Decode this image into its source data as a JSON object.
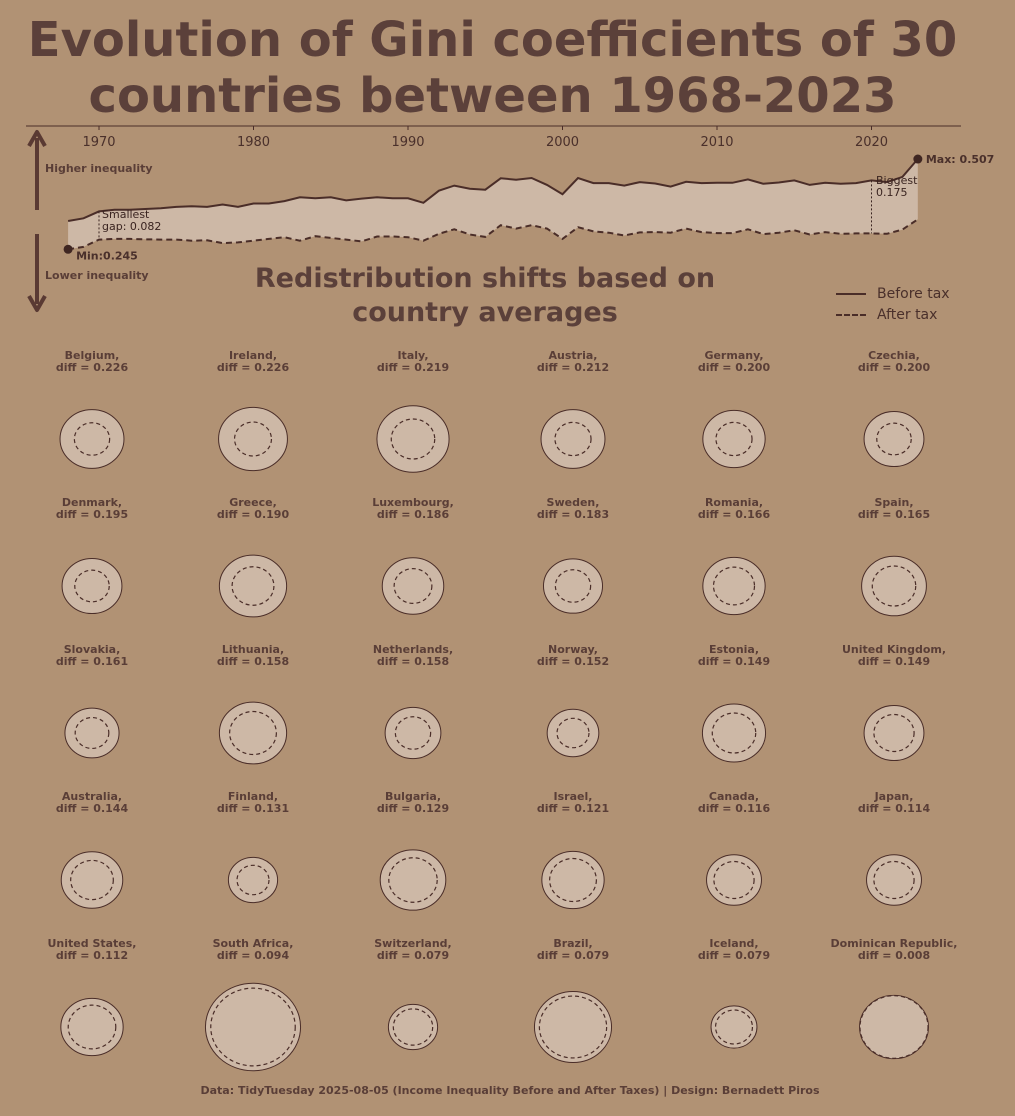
{
  "title": "Evolution of Gini coefficients of 30 countries between 1968-2023",
  "subtitle": "Redistribution shifts based on country averages",
  "caption": "Data: TidyTuesday 2025-08-05 (Income Inequality Before and After Taxes) | Design: Bernadett Piros",
  "legend": {
    "before": "Before tax",
    "after": "After tax"
  },
  "colors": {
    "background": "#b19274",
    "fill": "#cdb8a6",
    "line": "#4a2d28",
    "text": "#5a3e37"
  },
  "chart_data": [
    {
      "type": "area",
      "x_ticks": [
        1970,
        1980,
        1990,
        2000,
        2010,
        2020
      ],
      "xlim": [
        1968,
        2023
      ],
      "ylim": [
        0.24,
        0.51
      ],
      "arrow_labels": {
        "up": "Higher inequality",
        "down": "Lower inequality"
      },
      "annotations": {
        "max": "Max: 0.507",
        "min": "Min:0.245",
        "smallest_gap": "Smallest gap: 0.082",
        "biggest_gap": "Biggest gap: 0.175"
      },
      "series": [
        {
          "name": "Before tax",
          "x": [
            1968,
            1969,
            1970,
            1971,
            1972,
            1973,
            1974,
            1975,
            1976,
            1977,
            1978,
            1979,
            1980,
            1981,
            1982,
            1983,
            1984,
            1985,
            1986,
            1987,
            1988,
            1989,
            1990,
            1991,
            1992,
            1993,
            1994,
            1995,
            1996,
            1997,
            1998,
            1999,
            2000,
            2001,
            2002,
            2003,
            2004,
            2005,
            2006,
            2007,
            2008,
            2009,
            2010,
            2011,
            2012,
            2013,
            2014,
            2015,
            2016,
            2017,
            2018,
            2019,
            2020,
            2021,
            2022,
            2023
          ],
          "values": [
            0.327,
            0.335,
            0.355,
            0.36,
            0.36,
            0.362,
            0.364,
            0.368,
            0.37,
            0.368,
            0.375,
            0.368,
            0.378,
            0.378,
            0.385,
            0.396,
            0.393,
            0.396,
            0.387,
            0.392,
            0.396,
            0.393,
            0.393,
            0.38,
            0.415,
            0.43,
            0.421,
            0.418,
            0.451,
            0.447,
            0.452,
            0.432,
            0.405,
            0.452,
            0.437,
            0.437,
            0.43,
            0.44,
            0.436,
            0.427,
            0.441,
            0.437,
            0.438,
            0.438,
            0.448,
            0.435,
            0.439,
            0.445,
            0.432,
            0.438,
            0.435,
            0.437,
            0.445,
            0.44,
            0.455,
            0.507
          ]
        },
        {
          "name": "After tax",
          "x": [
            1968,
            1969,
            1970,
            1971,
            1972,
            1973,
            1974,
            1975,
            1976,
            1977,
            1978,
            1979,
            1980,
            1981,
            1982,
            1983,
            1984,
            1985,
            1986,
            1987,
            1988,
            1989,
            1990,
            1991,
            1992,
            1993,
            1994,
            1995,
            1996,
            1997,
            1998,
            1999,
            2000,
            2001,
            2002,
            2003,
            2004,
            2005,
            2006,
            2007,
            2008,
            2009,
            2010,
            2011,
            2012,
            2013,
            2014,
            2015,
            2016,
            2017,
            2018,
            2019,
            2020,
            2021,
            2022,
            2023
          ],
          "values": [
            0.245,
            0.252,
            0.273,
            0.275,
            0.275,
            0.274,
            0.273,
            0.273,
            0.27,
            0.271,
            0.263,
            0.265,
            0.27,
            0.275,
            0.28,
            0.27,
            0.283,
            0.278,
            0.273,
            0.268,
            0.282,
            0.282,
            0.28,
            0.27,
            0.29,
            0.303,
            0.288,
            0.281,
            0.315,
            0.305,
            0.315,
            0.305,
            0.275,
            0.309,
            0.297,
            0.293,
            0.285,
            0.294,
            0.295,
            0.293,
            0.305,
            0.295,
            0.292,
            0.292,
            0.303,
            0.289,
            0.293,
            0.3,
            0.288,
            0.295,
            0.29,
            0.291,
            0.291,
            0.29,
            0.302,
            0.332
          ]
        }
      ]
    },
    {
      "type": "ring",
      "countries": [
        {
          "name": "Belgium",
          "label": "Belgium,",
          "diff_label": "diff = 0.226",
          "before": 0.39,
          "after": 0.215
        },
        {
          "name": "Ireland",
          "label": "Ireland,",
          "diff_label": "diff = 0.226",
          "before": 0.42,
          "after": 0.225
        },
        {
          "name": "Italy",
          "label": "Italy,",
          "diff_label": "diff = 0.219",
          "before": 0.44,
          "after": 0.265
        },
        {
          "name": "Austria",
          "label": "Austria,",
          "diff_label": "diff = 0.212",
          "before": 0.39,
          "after": 0.22
        },
        {
          "name": "Germany",
          "label": "Germany,",
          "diff_label": "diff = 0.200",
          "before": 0.38,
          "after": 0.22
        },
        {
          "name": "Czechia",
          "label": "Czechia,",
          "diff_label": "diff = 0.200",
          "before": 0.365,
          "after": 0.21
        },
        {
          "name": "Denmark",
          "label": "Denmark,",
          "diff_label": "diff = 0.195",
          "before": 0.365,
          "after": 0.21
        },
        {
          "name": "Greece",
          "label": "Greece,",
          "diff_label": "diff = 0.190",
          "before": 0.41,
          "after": 0.255
        },
        {
          "name": "Luxembourg",
          "label": "Luxembourg,",
          "diff_label": "diff = 0.186",
          "before": 0.375,
          "after": 0.23
        },
        {
          "name": "Sweden",
          "label": "Sweden,",
          "diff_label": "diff = 0.183",
          "before": 0.36,
          "after": 0.215
        },
        {
          "name": "Romania",
          "label": "Romania,",
          "diff_label": "diff = 0.166",
          "before": 0.38,
          "after": 0.25
        },
        {
          "name": "Spain",
          "label": "Spain,",
          "diff_label": "diff = 0.165",
          "before": 0.395,
          "after": 0.265
        },
        {
          "name": "Slovakia",
          "label": "Slovakia,",
          "diff_label": "diff = 0.161",
          "before": 0.33,
          "after": 0.205
        },
        {
          "name": "Lithuania",
          "label": "Lithuania,",
          "diff_label": "diff = 0.158",
          "before": 0.41,
          "after": 0.285
        },
        {
          "name": "Netherlands",
          "label": "Netherlands,",
          "diff_label": "diff = 0.158",
          "before": 0.34,
          "after": 0.215
        },
        {
          "name": "Norway",
          "label": "Norway,",
          "diff_label": "diff = 0.152",
          "before": 0.315,
          "after": 0.195
        },
        {
          "name": "Estonia",
          "label": "Estonia,",
          "diff_label": "diff = 0.149",
          "before": 0.385,
          "after": 0.265
        },
        {
          "name": "United Kingdom",
          "label": "United Kingdom,",
          "diff_label": "diff = 0.149",
          "before": 0.365,
          "after": 0.245
        },
        {
          "name": "Australia",
          "label": "Australia,",
          "diff_label": "diff = 0.144",
          "before": 0.375,
          "after": 0.26
        },
        {
          "name": "Finland",
          "label": "Finland,",
          "diff_label": "diff = 0.131",
          "before": 0.3,
          "after": 0.195
        },
        {
          "name": "Bulgaria",
          "label": "Bulgaria,",
          "diff_label": "diff = 0.129",
          "before": 0.4,
          "after": 0.295
        },
        {
          "name": "Israel",
          "label": "Israel,",
          "diff_label": "diff = 0.121",
          "before": 0.38,
          "after": 0.285
        },
        {
          "name": "Canada",
          "label": "Canada,",
          "diff_label": "diff = 0.116",
          "before": 0.335,
          "after": 0.245
        },
        {
          "name": "Japan",
          "label": "Japan,",
          "diff_label": "diff = 0.114",
          "before": 0.335,
          "after": 0.245
        },
        {
          "name": "United States",
          "label": "United States,",
          "diff_label": "diff = 0.112",
          "before": 0.38,
          "after": 0.29
        },
        {
          "name": "South Africa",
          "label": "South Africa,",
          "diff_label": "diff = 0.094",
          "before": 0.58,
          "after": 0.515
        },
        {
          "name": "Switzerland",
          "label": "Switzerland,",
          "diff_label": "diff = 0.079",
          "before": 0.3,
          "after": 0.24
        },
        {
          "name": "Brazil",
          "label": "Brazil,",
          "diff_label": "diff = 0.079",
          "before": 0.47,
          "after": 0.41
        },
        {
          "name": "Iceland",
          "label": "Iceland,",
          "diff_label": "diff = 0.079",
          "before": 0.28,
          "after": 0.225
        },
        {
          "name": "Dominican Republic",
          "label": "Dominican Republic,",
          "diff_label": "diff = 0.008",
          "before": 0.42,
          "after": 0.415
        }
      ]
    }
  ]
}
